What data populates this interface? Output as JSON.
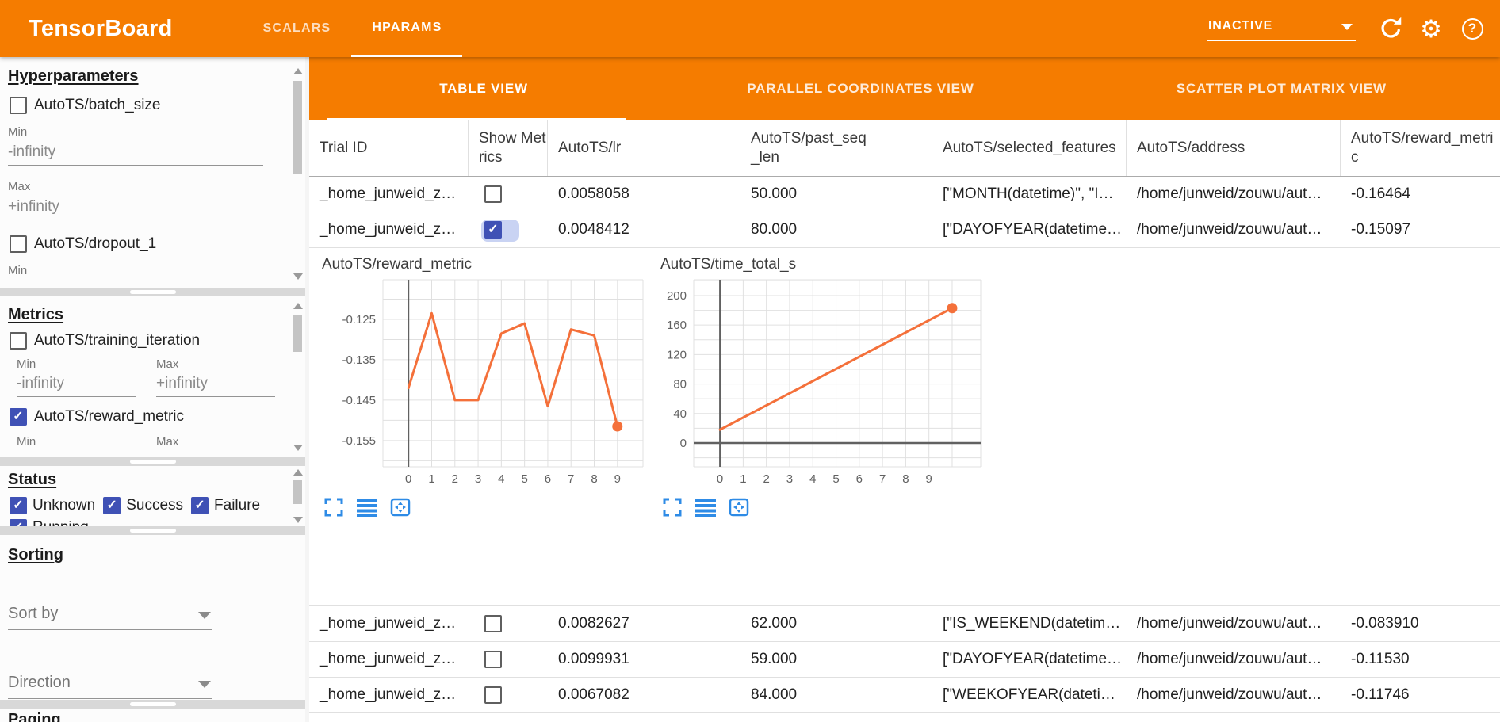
{
  "topbar": {
    "logo": "TensorBoard",
    "tabs": [
      {
        "label": "SCALARS",
        "active": false
      },
      {
        "label": "HPARAMS",
        "active": true
      }
    ],
    "run_selector": {
      "value": "INACTIVE"
    },
    "icons": [
      "dropdown-caret-icon",
      "refresh-icon",
      "settings-gear-icon",
      "help-icon"
    ],
    "help_glyph": "?"
  },
  "sidebar": {
    "hyperparameters": {
      "title": "Hyperparameters",
      "items": [
        {
          "label": "AutoTS/batch_size",
          "checked": false,
          "min_label": "Min",
          "min": "-infinity",
          "max_label": "Max",
          "max": "+infinity"
        },
        {
          "label": "AutoTS/dropout_1",
          "checked": false,
          "min_label": "Min"
        }
      ]
    },
    "metrics": {
      "title": "Metrics",
      "items": [
        {
          "label": "AutoTS/training_iteration",
          "checked": false,
          "min_label": "Min",
          "min": "-infinity",
          "max_label": "Max",
          "max": "+infinity"
        },
        {
          "label": "AutoTS/reward_metric",
          "checked": true,
          "min_label": "Min",
          "max_label": "Max"
        }
      ]
    },
    "status": {
      "title": "Status",
      "options": [
        {
          "label": "Unknown",
          "checked": true
        },
        {
          "label": "Success",
          "checked": true
        },
        {
          "label": "Failure",
          "checked": true
        },
        {
          "label": "Running",
          "checked": true
        }
      ]
    },
    "sorting": {
      "title": "Sorting",
      "sort_by_placeholder": "Sort by",
      "direction_placeholder": "Direction"
    },
    "paging": {
      "title": "Paging"
    }
  },
  "view_tabs": [
    {
      "label": "TABLE VIEW",
      "active": true
    },
    {
      "label": "PARALLEL COORDINATES VIEW",
      "active": false
    },
    {
      "label": "SCATTER PLOT MATRIX VIEW",
      "active": false
    }
  ],
  "table": {
    "columns": [
      "Trial ID",
      "Show Metrics",
      "AutoTS/lr",
      "AutoTS/past_seq_len",
      "AutoTS/selected_features",
      "AutoTS/address",
      "AutoTS/reward_metric"
    ],
    "rows": [
      {
        "trial_id": "_home_junweid_z…",
        "show_metrics": false,
        "lr": "0.0058058",
        "past_seq_len": "50.000",
        "selected_features": "[\"MONTH(datetime)\", \"I…",
        "address": "/home/junweid/zouwu/aut…",
        "reward_metric": "-0.16464"
      },
      {
        "trial_id": "_home_junweid_z…",
        "show_metrics": true,
        "lr": "0.0048412",
        "past_seq_len": "80.000",
        "selected_features": "[\"DAYOFYEAR(datetime…",
        "address": "/home/junweid/zouwu/aut…",
        "reward_metric": "-0.15097"
      },
      {
        "trial_id": "_home_junweid_z…",
        "show_metrics": false,
        "lr": "0.0082627",
        "past_seq_len": "62.000",
        "selected_features": "[\"IS_WEEKEND(datetim…",
        "address": "/home/junweid/zouwu/aut…",
        "reward_metric": "-0.083910"
      },
      {
        "trial_id": "_home_junweid_z…",
        "show_metrics": false,
        "lr": "0.0099931",
        "past_seq_len": "59.000",
        "selected_features": "[\"DAYOFYEAR(datetime…",
        "address": "/home/junweid/zouwu/aut…",
        "reward_metric": "-0.11530"
      },
      {
        "trial_id": "_home_junweid_z…",
        "show_metrics": false,
        "lr": "0.0067082",
        "past_seq_len": "84.000",
        "selected_features": "[\"WEEKOFYEAR(dateti…",
        "address": "/home/junweid/zouwu/aut…",
        "reward_metric": "-0.11746"
      }
    ]
  },
  "chart_data": [
    {
      "type": "line",
      "title": "AutoTS/reward_metric",
      "x": [
        0,
        1,
        2,
        3,
        4,
        5,
        6,
        7,
        8,
        9
      ],
      "values": [
        -0.142,
        -0.1235,
        -0.145,
        -0.145,
        -0.1285,
        -0.126,
        -0.1465,
        -0.1275,
        -0.129,
        -0.1515
      ],
      "x_ticks": [
        "0",
        "1",
        "2",
        "3",
        "4",
        "5",
        "6",
        "7",
        "8",
        "9"
      ],
      "y_tick_vals": [
        -0.125,
        -0.135,
        -0.145,
        -0.155
      ],
      "y_tick_labels": [
        "-0.125",
        "-0.135",
        "-0.145",
        "-0.155"
      ],
      "xlim": [
        -1.1,
        10.1
      ],
      "ylim": [
        -0.1615,
        -0.1152
      ],
      "xlabel": "",
      "ylabel": "",
      "grid": true,
      "legend": false,
      "line_color": "#f4703a",
      "end_marker": true,
      "dark_x0": true,
      "dark_y0": false
    },
    {
      "type": "line",
      "title": "AutoTS/time_total_s",
      "x": [
        0,
        10
      ],
      "values": [
        18,
        183
      ],
      "x_ticks": [
        "0",
        "1",
        "2",
        "3",
        "4",
        "5",
        "6",
        "7",
        "8",
        "9"
      ],
      "y_tick_vals": [
        200,
        160,
        120,
        80,
        40,
        0
      ],
      "y_tick_labels": [
        "200",
        "160",
        "120",
        "80",
        "40",
        "0"
      ],
      "xlim": [
        -1.13,
        11.23
      ],
      "ylim": [
        -32.3,
        221.5
      ],
      "xlabel": "",
      "ylabel": "",
      "grid": true,
      "legend": false,
      "line_color": "#f4703a",
      "end_marker": true,
      "dark_x0": true,
      "dark_y0": true
    }
  ],
  "toolbox_icons": [
    "fullscreen-icon",
    "lines-icon",
    "pan-icon"
  ],
  "colors": {
    "header_orange": "#f57c00",
    "accent_indigo": "#3f51b5",
    "chart_line": "#f4703a",
    "toolbox_blue": "#2e8be6"
  }
}
